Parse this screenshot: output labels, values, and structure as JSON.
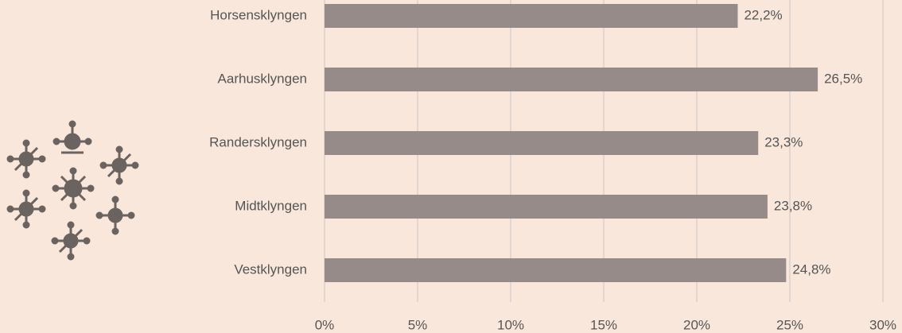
{
  "chart_data": {
    "type": "bar",
    "orientation": "horizontal",
    "categories": [
      "Horsensklyngen",
      "Aarhusklyngen",
      "Randersklyngen",
      "Midtklyngen",
      "Vestklyngen"
    ],
    "values": [
      22.2,
      26.5,
      23.3,
      23.8,
      24.8
    ],
    "value_labels": [
      "22,2%",
      "26,5%",
      "23,3%",
      "23,8%",
      "24,8%"
    ],
    "color": "#968b88",
    "xlim": [
      0,
      30
    ],
    "xticks": [
      {
        "value": 0,
        "label": "0%"
      },
      {
        "value": 5,
        "label": "5%"
      },
      {
        "value": 10,
        "label": "10%"
      },
      {
        "value": 15,
        "label": "15%"
      },
      {
        "value": 20,
        "label": "20%"
      },
      {
        "value": 25,
        "label": "25%"
      },
      {
        "value": 30,
        "label": "30%"
      }
    ],
    "grid": true
  }
}
